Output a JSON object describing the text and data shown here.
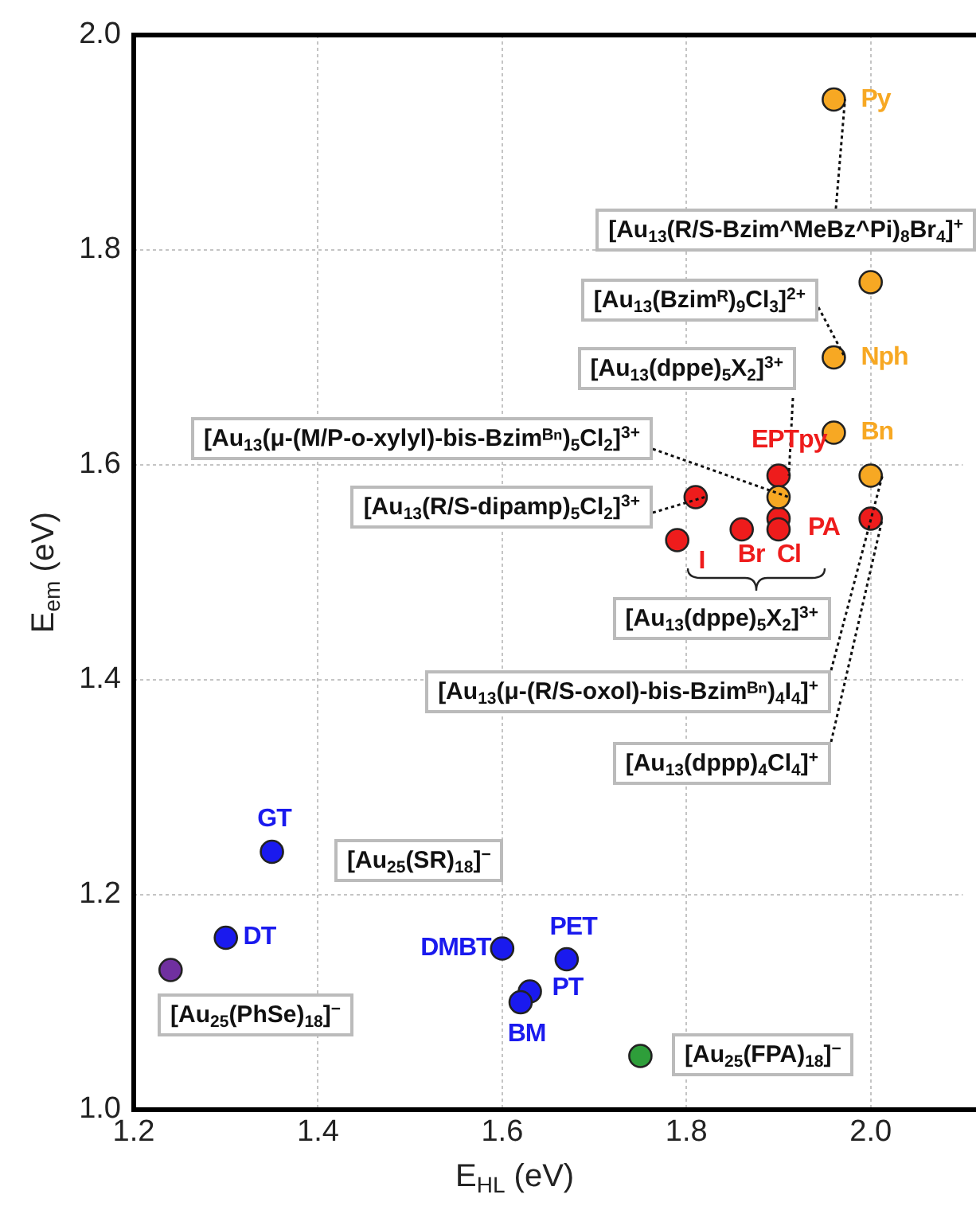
{
  "chart_data": {
    "type": "scatter",
    "xlabel": "E$_{HL}$ (eV)",
    "ylabel": "E$_{em}$ (eV)",
    "xlim": [
      1.2,
      2.1
    ],
    "xticks": [
      1.2,
      1.4,
      1.6,
      1.8,
      {
        "value": 2,
        "label": "2.0"
      }
    ],
    "ylim": [
      1.0,
      2.0
    ],
    "yticks": [
      {
        "value": 1,
        "label": "1.0"
      },
      1.2,
      1.4,
      1.6,
      1.8,
      {
        "value": 2,
        "label": "2.0"
      }
    ],
    "grid": true,
    "legend": false,
    "marker": "circle",
    "series": [
      {
        "color": "#f7a823",
        "x": [
          1.96,
          2.0,
          1.96,
          1.96,
          2.0,
          1.9
        ],
        "values": [
          1.94,
          1.77,
          1.7,
          1.63,
          1.59,
          1.57
        ]
      },
      {
        "color": "#ee1c1c",
        "x": [
          1.9,
          1.81,
          1.79,
          1.86,
          1.9,
          1.9,
          2.0
        ],
        "values": [
          1.59,
          1.57,
          1.53,
          1.54,
          1.55,
          1.54,
          1.55
        ]
      },
      {
        "color": "#1a1aee",
        "x": [
          1.35,
          1.3,
          1.6,
          1.67,
          1.63,
          1.62
        ],
        "values": [
          1.24,
          1.16,
          1.15,
          1.14,
          1.11,
          1.1
        ]
      },
      {
        "color": "#7030a0",
        "x": [
          1.24
        ],
        "values": [
          1.13
        ]
      },
      {
        "color": "#2e9e3a",
        "x": [
          1.75
        ],
        "values": [
          1.05
        ]
      }
    ],
    "annotations": [
      {
        "text": "[Au$_{13}$(R/S-Bzim^MeBz^Pi)$_{8}$Br$_{4}$]$^{+}$",
        "x": 1.96,
        "y": 1.94
      },
      {
        "text": "[Au$_{13}$(Bzimᴿ)$_{9}$Cl$_{3}$]$^{2+}$",
        "x": 1.96,
        "y": 1.7
      },
      {
        "text": "[Au$_{13}$(dppe)$_{5}$X$_{2}$]$^{3+}$",
        "x": 1.9,
        "y": 1.59
      },
      {
        "text": "[Au$_{13}$(μ-(M/P-o-xylyl)-bis-Bzimᴮⁿ)$_{5}$Cl$_{2}$]$^{3+}$",
        "x": 1.9,
        "y": 1.57
      },
      {
        "text": "[Au$_{13}$(R/S-dipamp)$_{5}$Cl$_{2}$]$^{3+}$",
        "x": 1.81,
        "y": 1.57
      },
      "[Au$_{13}$(dppe)$_{5}$X$_{2}$]$^{3+}$",
      {
        "text": "[Au$_{13}$(μ-(R/S-oxol)-bis-Bzimᴮⁿ)$_{4}$I$_{4}$]$^{+}$",
        "x": 2.0,
        "y": 1.59
      },
      {
        "text": "[Au$_{13}$(dppp)$_{4}$Cl$_{4}$]$^{+}$",
        "x": 2.0,
        "y": 1.55
      },
      "[Au$_{25}$(SR)$_{18}$]$^{−}$",
      "[Au$_{25}$(PhSe)$_{18}$]$^{−}$",
      "[Au$_{25}$(FPA)$_{18}$]$^{−}$",
      {
        "text": "Py",
        "x": 1.96,
        "y": 1.94
      },
      {
        "text": "Nph",
        "x": 1.96,
        "y": 1.7
      },
      {
        "text": "Bn",
        "x": 1.96,
        "y": 1.63
      },
      {
        "text": "EPTpy",
        "x": 1.9,
        "y": 1.59
      },
      {
        "text": "PA",
        "x": 1.9,
        "y": 1.55
      },
      {
        "text": "I",
        "x": 1.79,
        "y": 1.53
      },
      {
        "text": "Br",
        "x": 1.86,
        "y": 1.54
      },
      {
        "text": "Cl",
        "x": 1.9,
        "y": 1.54
      },
      {
        "text": "GT",
        "x": 1.35,
        "y": 1.24
      },
      {
        "text": "DT",
        "x": 1.3,
        "y": 1.16
      },
      {
        "text": "DMBT",
        "x": 1.6,
        "y": 1.15
      },
      {
        "text": "PET",
        "x": 1.67,
        "y": 1.14
      },
      {
        "text": "PT",
        "x": 1.63,
        "y": 1.11
      },
      {
        "text": "BM",
        "x": 1.62,
        "y": 1.1
      }
    ]
  }
}
